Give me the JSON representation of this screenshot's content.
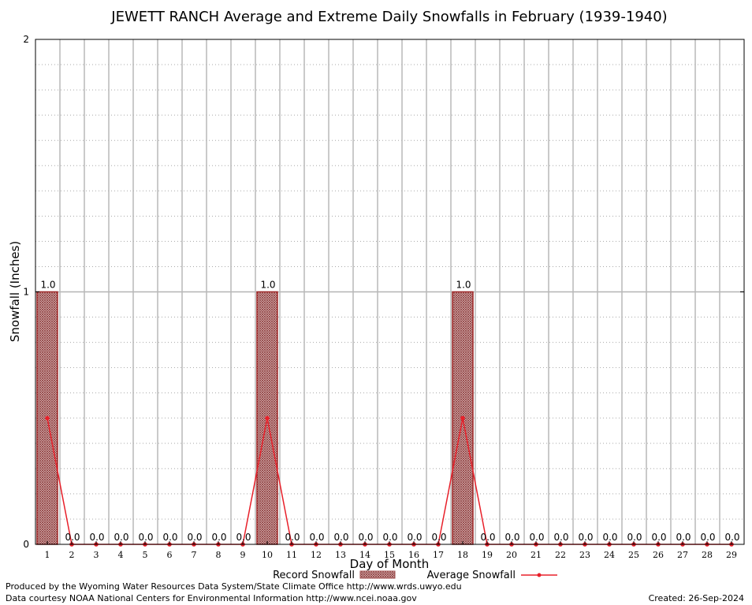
{
  "chart_data": {
    "type": "bar",
    "title": "JEWETT RANCH Average and Extreme Daily Snowfalls in February (1939-1940)",
    "xlabel": "Day of Month",
    "ylabel": "Snowfall (Inches)",
    "ylim": [
      0,
      2
    ],
    "yticks": [
      "0",
      "1",
      "2"
    ],
    "grid": true,
    "legend_position": "bottom",
    "categories": [
      "1",
      "2",
      "3",
      "4",
      "5",
      "6",
      "7",
      "8",
      "9",
      "10",
      "11",
      "12",
      "13",
      "14",
      "15",
      "16",
      "17",
      "18",
      "19",
      "20",
      "21",
      "22",
      "23",
      "24",
      "25",
      "26",
      "27",
      "28",
      "29"
    ],
    "series": [
      {
        "name": "Record Snowfall",
        "kind": "bar",
        "values": [
          1.0,
          0.0,
          0.0,
          0.0,
          0.0,
          0.0,
          0.0,
          0.0,
          0.0,
          1.0,
          0.0,
          0.0,
          0.0,
          0.0,
          0.0,
          0.0,
          0.0,
          1.0,
          0.0,
          0.0,
          0.0,
          0.0,
          0.0,
          0.0,
          0.0,
          0.0,
          0.0,
          0.0,
          0.0
        ],
        "labels": [
          "1.0",
          "0.0",
          "0.0",
          "0.0",
          "0.0",
          "0.0",
          "0.0",
          "0.0",
          "0.0",
          "1.0",
          "0.0",
          "0.0",
          "0.0",
          "0.0",
          "0.0",
          "0.0",
          "0.0",
          "1.0",
          "0.0",
          "0.0",
          "0.0",
          "0.0",
          "0.0",
          "0.0",
          "0.0",
          "0.0",
          "0.0",
          "0.0",
          "0.0"
        ],
        "color": "#a05050"
      },
      {
        "name": "Average Snowfall",
        "kind": "line",
        "values": [
          0.5,
          0,
          0,
          0,
          0,
          0,
          0,
          0,
          0,
          0.5,
          0,
          0,
          0,
          0,
          0,
          0,
          0,
          0.5,
          0,
          0,
          0,
          0,
          0,
          0,
          0,
          0,
          0,
          0,
          0
        ],
        "color": "#e8202a"
      }
    ]
  },
  "footer": {
    "left1": "Produced by the Wyoming Water Resources Data System/State Climate Office http://www.wrds.uwyo.edu",
    "left2": "Data courtesy NOAA National Centers for Environmental Information http://www.ncei.noaa.gov",
    "right": "Created:  26-Sep-2024"
  }
}
